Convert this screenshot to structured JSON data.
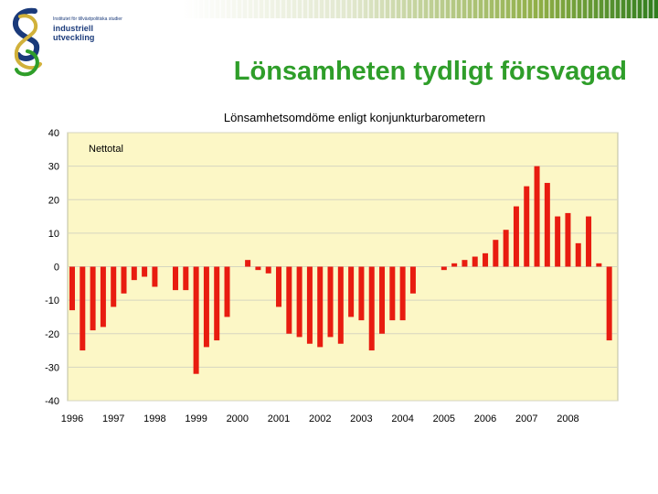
{
  "page": {
    "title": "Lönsamheten tydligt försvagad"
  },
  "logo": {
    "small_text": "Institutet för tillväxtpolitiska studier",
    "name": "industriell utveckling"
  },
  "colors": {
    "bar": "#e81c10",
    "plot_bg": "#fcf7c6",
    "grid": "#d6d6c0",
    "title": "#2f9e2a"
  },
  "chart_data": {
    "type": "bar",
    "title": "Lönsamhetsomdöme  enligt konjunkturbarometern",
    "annotation": "Nettotal",
    "xlabel": "",
    "ylabel": "",
    "ylim": [
      -40,
      40
    ],
    "yticks": [
      40,
      30,
      20,
      10,
      0,
      -10,
      -20,
      -30,
      -40
    ],
    "year_labels": [
      "1996",
      "1997",
      "1998",
      "1999",
      "2000",
      "2001",
      "2002",
      "2003",
      "2004",
      "2005",
      "2006",
      "2007",
      "2008"
    ],
    "periods_per_year": 4,
    "start_year": 1996,
    "grid": true,
    "values": [
      -13,
      -25,
      -19,
      -18,
      -12,
      -8,
      -4,
      -3,
      -6,
      null,
      -7,
      -7,
      -32,
      -24,
      -22,
      -15,
      null,
      2,
      -1,
      -2,
      -12,
      -20,
      -21,
      -23,
      -24,
      -21,
      -23,
      -15,
      -16,
      -25,
      -20,
      -16,
      -16,
      -8,
      null,
      null,
      -1,
      1,
      2,
      3,
      4,
      8,
      11,
      18,
      24,
      30,
      25,
      15,
      16,
      7,
      15,
      1,
      -22
    ]
  }
}
